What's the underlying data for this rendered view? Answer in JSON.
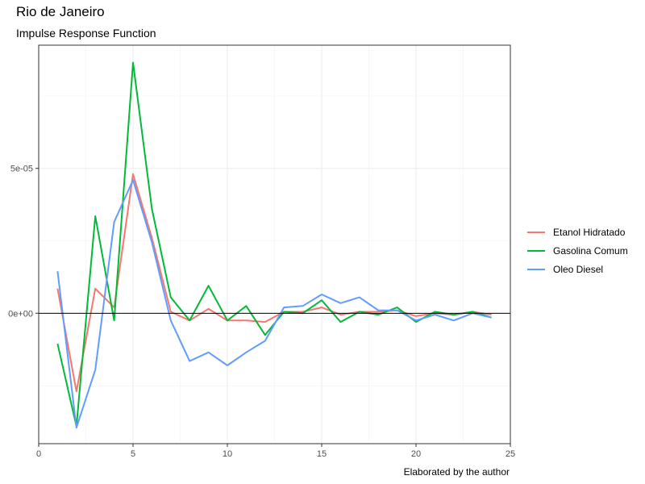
{
  "chart_data": {
    "type": "line",
    "title": "Rio de Janeiro",
    "subtitle": "Impulse Response Function",
    "caption": "Elaborated by the author",
    "xlim": [
      0,
      25
    ],
    "ylim": [
      -4.5e-05,
      9.25e-05
    ],
    "x_ticks": [
      0,
      5,
      10,
      15,
      20,
      25
    ],
    "y_ticks": [
      0,
      5e-05
    ],
    "y_tick_labels": [
      "0e+00",
      "5e-05"
    ],
    "hline_at": 0,
    "grid": true,
    "legend_position": "right",
    "x": [
      1,
      2,
      3,
      4,
      5,
      6,
      7,
      8,
      9,
      10,
      11,
      12,
      13,
      14,
      15,
      16,
      17,
      18,
      19,
      20,
      21,
      22,
      23,
      24
    ],
    "series": [
      {
        "name": "Etanol Hidratado",
        "color": "#F8766D",
        "values": [
          8.5e-06,
          -2.7e-05,
          8.5e-06,
          2e-06,
          4.8e-05,
          2.6e-05,
          5e-07,
          -2.5e-06,
          1.5e-06,
          -2.5e-06,
          -2.5e-06,
          -3e-06,
          5e-07,
          5e-07,
          2e-06,
          -5e-07,
          5e-07,
          5e-07,
          1e-06,
          -1e-06,
          0.0,
          -5e-07,
          5e-07,
          -5e-07
        ]
      },
      {
        "name": "Gasolina Comum",
        "color": "#00BA38",
        "values": [
          -1.05e-05,
          -3.9e-05,
          3.35e-05,
          -2.5e-06,
          8.65e-05,
          3.6e-05,
          5.5e-06,
          -2.5e-06,
          9.5e-06,
          -2.5e-06,
          2.5e-06,
          -7.5e-06,
          5e-07,
          0.0,
          4.5e-06,
          -3e-06,
          5e-07,
          -5e-07,
          2e-06,
          -3e-06,
          5e-07,
          -5e-07,
          5e-07,
          -1.5e-06
        ]
      },
      {
        "name": "Oleo Diesel",
        "color": "#619CFF",
        "values": [
          1.45e-05,
          -3.95e-05,
          -1.95e-05,
          3.15e-05,
          4.6e-05,
          2.45e-05,
          -2.5e-06,
          -1.65e-05,
          -1.35e-05,
          -1.8e-05,
          -1.35e-05,
          -9.5e-06,
          2e-06,
          2.5e-06,
          6.5e-06,
          3.5e-06,
          5.5e-06,
          1e-06,
          1e-06,
          -2.5e-06,
          -5e-07,
          -2.5e-06,
          0.0,
          -1.5e-06
        ]
      }
    ]
  }
}
